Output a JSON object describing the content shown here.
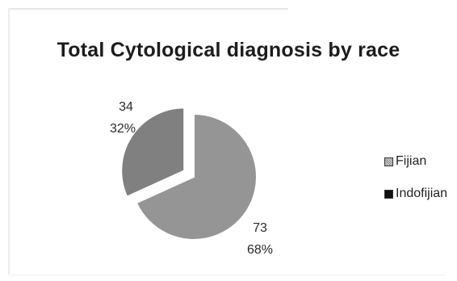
{
  "chart_data": {
    "type": "pie",
    "title": "Total Cytological diagnosis by race",
    "slices": [
      {
        "name": "Fijian",
        "value": 73,
        "percent_label": "68%",
        "value_label": "73",
        "color": "#959595"
      },
      {
        "name": "Indofijian",
        "value": 34,
        "percent_label": "32%",
        "value_label": "34",
        "color": "#808080",
        "exploded": true
      }
    ],
    "legend": {
      "placement": "right",
      "items": [
        {
          "label": "Fijian",
          "marker": "hatched-square"
        },
        {
          "label": "Indofijian",
          "marker": "solid-square"
        }
      ]
    }
  }
}
